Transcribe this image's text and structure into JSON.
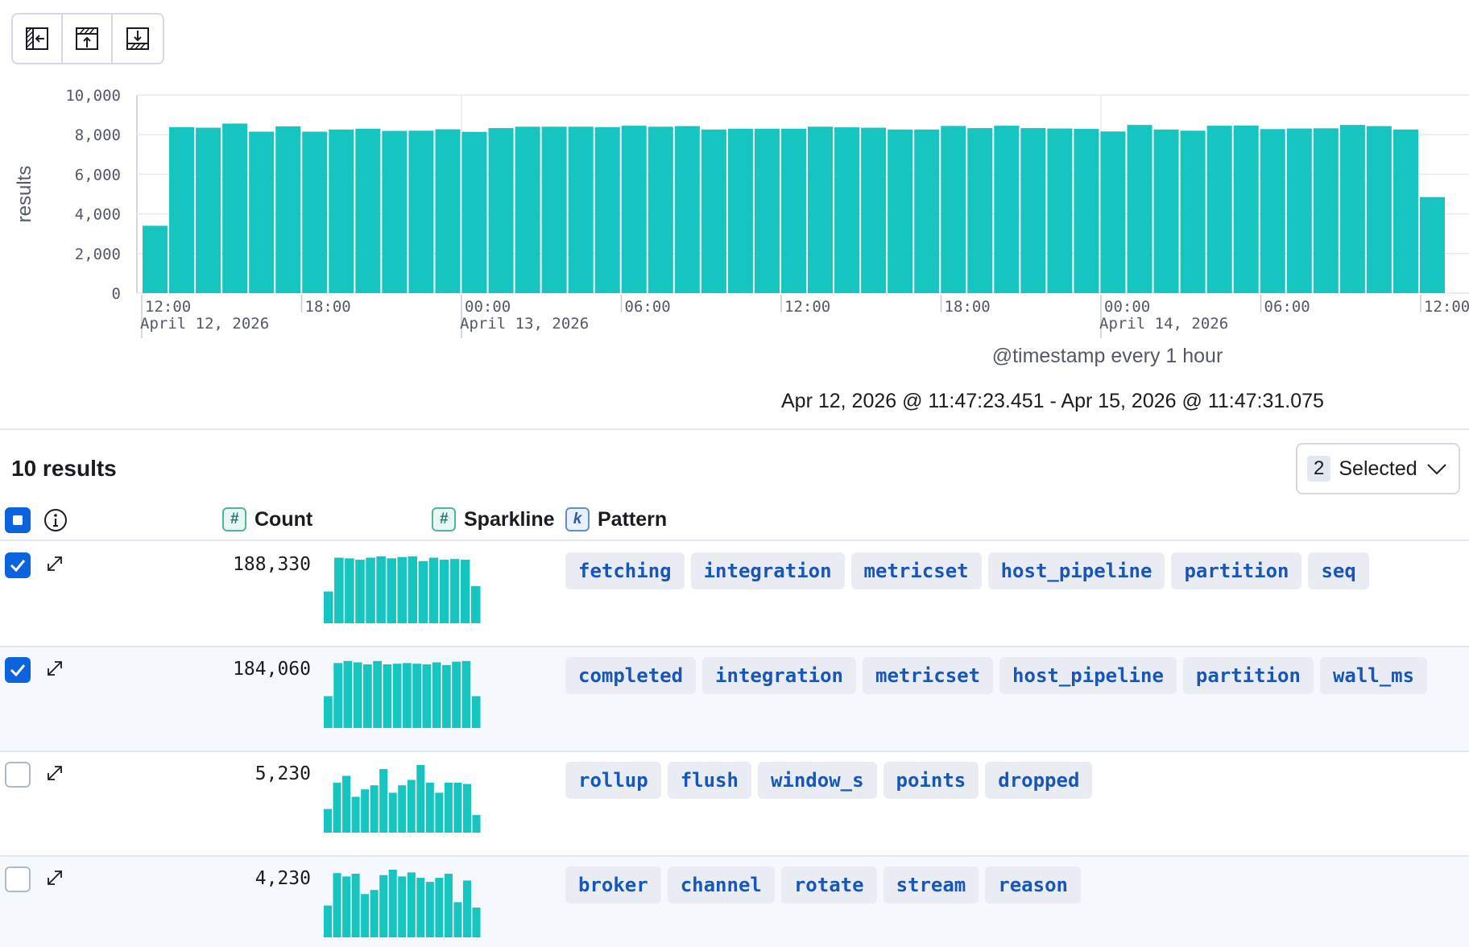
{
  "toolbar": {
    "buttons": [
      {
        "icon": "collapse-left-icon"
      },
      {
        "icon": "upload-icon"
      },
      {
        "icon": "download-icon"
      }
    ]
  },
  "chart_data": {
    "type": "bar",
    "ylabel": "results",
    "ylim": [
      0,
      10000
    ],
    "y_ticks": [
      "10,000",
      "8,000",
      "6,000",
      "4,000",
      "2,000",
      "0"
    ],
    "y_tick_values": [
      10000,
      8000,
      6000,
      4000,
      2000,
      0
    ],
    "x_ticks": [
      {
        "time": "12:00",
        "date": "April 12, 2026"
      },
      {
        "time": "18:00",
        "date": ""
      },
      {
        "time": "00:00",
        "date": "April 13, 2026"
      },
      {
        "time": "06:00",
        "date": ""
      },
      {
        "time": "12:00",
        "date": ""
      },
      {
        "time": "18:00",
        "date": ""
      },
      {
        "time": "00:00",
        "date": "April 14, 2026"
      },
      {
        "time": "06:00",
        "date": ""
      },
      {
        "time": "12:00",
        "date": ""
      }
    ],
    "xlabel": "@timestamp every 1 hour",
    "values": [
      3400,
      8380,
      8350,
      8560,
      8150,
      8420,
      8150,
      8260,
      8300,
      8190,
      8200,
      8270,
      8140,
      8330,
      8400,
      8400,
      8400,
      8380,
      8450,
      8400,
      8430,
      8260,
      8300,
      8300,
      8300,
      8400,
      8370,
      8350,
      8260,
      8260,
      8440,
      8330,
      8450,
      8330,
      8310,
      8290,
      8160,
      8490,
      8260,
      8200,
      8450,
      8460,
      8280,
      8310,
      8320,
      8490,
      8430,
      8260,
      4850
    ],
    "color": "#16c5c0"
  },
  "time_range": "Apr 12, 2026 @ 11:47:23.451 - Apr 15, 2026 @ 11:47:31.075",
  "results_count": "10 results",
  "selected": {
    "count": "2",
    "label": "Selected"
  },
  "columns": {
    "count": "Count",
    "sparkline": "Sparkline",
    "pattern": "Pattern",
    "num_token": "#",
    "k_token": "k"
  },
  "rows": [
    {
      "checked": true,
      "count": "188,330",
      "sparkline": [
        0.47,
        0.97,
        0.96,
        0.94,
        0.97,
        0.99,
        0.96,
        0.98,
        0.99,
        0.92,
        0.97,
        0.94,
        0.95,
        0.94,
        0.55
      ],
      "tokens": [
        "fetching",
        "integration",
        "metricset",
        "host_pipeline",
        "partition",
        "seq"
      ]
    },
    {
      "checked": true,
      "count": "184,060",
      "sparkline": [
        0.47,
        0.96,
        0.99,
        0.97,
        0.94,
        0.99,
        0.94,
        0.95,
        0.96,
        0.95,
        0.94,
        0.97,
        0.93,
        0.98,
        0.99,
        0.47
      ],
      "tokens": [
        "completed",
        "integration",
        "metricset",
        "host_pipeline",
        "partition",
        "wall_ms"
      ]
    },
    {
      "checked": false,
      "count": "5,230",
      "sparkline": [
        0.35,
        0.74,
        0.84,
        0.53,
        0.64,
        0.7,
        0.94,
        0.59,
        0.7,
        0.78,
        1.0,
        0.74,
        0.59,
        0.74,
        0.74,
        0.72,
        0.26
      ],
      "tokens": [
        "rollup",
        "flush",
        "window_s",
        "points",
        "dropped"
      ]
    },
    {
      "checked": false,
      "count": "4,230",
      "sparkline": [
        0.47,
        0.95,
        0.9,
        0.94,
        0.64,
        0.7,
        0.92,
        1.0,
        0.9,
        0.96,
        0.88,
        0.82,
        0.88,
        0.94,
        0.52,
        0.84,
        0.44
      ],
      "tokens": [
        "broker",
        "channel",
        "rotate",
        "stream",
        "reason"
      ]
    }
  ]
}
